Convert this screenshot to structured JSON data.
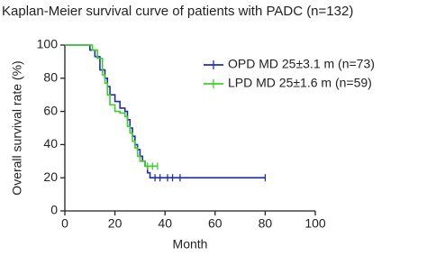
{
  "chart_data": {
    "type": "line",
    "step": true,
    "title": "Kaplan-Meier survival curve of patients with PADC (n=132)",
    "x_label": "Month",
    "y_label": "Overall survival rate (%)",
    "xlim": [
      0,
      100
    ],
    "xticks": [
      0,
      20,
      40,
      60,
      80,
      100
    ],
    "ylim": [
      0,
      100
    ],
    "yticks": [
      0,
      20,
      40,
      60,
      80,
      100
    ],
    "series": [
      {
        "name": "OPD MD 25±3.1 m (n=73)",
        "color": "#1f2fa8",
        "x": [
          0,
          10,
          12,
          14,
          16,
          17,
          18,
          20,
          22,
          24,
          25,
          26,
          27,
          28,
          29,
          30,
          31,
          32,
          33,
          34,
          80
        ],
        "values": [
          100,
          97,
          93,
          85,
          80,
          75,
          70,
          66,
          62,
          60,
          55,
          50,
          45,
          40,
          37,
          33,
          30,
          27,
          23,
          20,
          20
        ],
        "censored": [
          36,
          38,
          41,
          43,
          46,
          80
        ]
      },
      {
        "name": "LPD MD 25±1.6 m (n=59)",
        "color": "#3fcf2a",
        "x": [
          0,
          9,
          11,
          13,
          15,
          16,
          17,
          18,
          20,
          22,
          24,
          25,
          26,
          27,
          28,
          29,
          30,
          32,
          37
        ],
        "values": [
          100,
          100,
          97,
          92,
          82,
          77,
          70,
          64,
          60,
          59,
          57,
          51,
          47,
          42,
          38,
          33,
          30,
          27,
          27
        ],
        "censored": [
          33,
          35,
          37
        ]
      }
    ]
  }
}
